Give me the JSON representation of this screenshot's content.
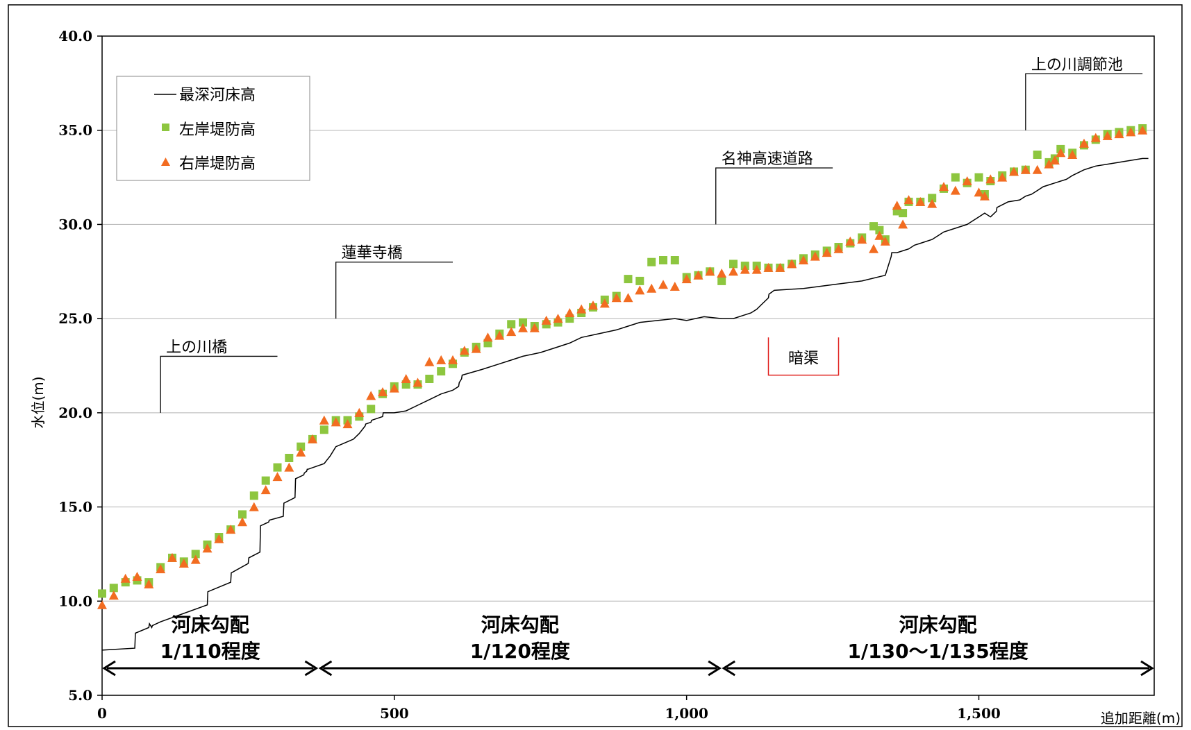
{
  "chart_data": {
    "type": "line",
    "xlabel": "追加距離(m)",
    "ylabel": "水位(m)",
    "xlim": [
      0,
      1800
    ],
    "ylim": [
      5.0,
      40.0
    ],
    "x_ticks": [
      "0",
      "500",
      "1,000",
      "1,500"
    ],
    "y_ticks": [
      "5.0",
      "10.0",
      "15.0",
      "20.0",
      "25.0",
      "30.0",
      "35.0",
      "40.0"
    ],
    "grid": "horizontal",
    "legend_position": "top-left",
    "series": [
      {
        "name": "最深河床高",
        "kind": "line",
        "color": "#000000",
        "x": [
          0,
          56,
          57,
          80,
          81,
          85,
          86,
          100,
          180,
          181,
          220,
          221,
          250,
          251,
          270,
          271,
          285,
          286,
          310,
          311,
          330,
          331,
          345,
          346,
          350,
          351,
          352,
          380,
          385,
          390,
          400,
          430,
          440,
          450,
          451,
          460,
          461,
          480,
          481,
          500,
          520,
          540,
          560,
          580,
          600,
          610,
          611,
          615,
          616,
          650,
          680,
          700,
          720,
          750,
          780,
          800,
          820,
          850,
          880,
          900,
          920,
          950,
          980,
          1000,
          1030,
          1060,
          1080,
          1100,
          1110,
          1120,
          1130,
          1140,
          1141,
          1150,
          1200,
          1250,
          1300,
          1340,
          1350,
          1351,
          1360,
          1370,
          1380,
          1390,
          1400,
          1420,
          1430,
          1440,
          1460,
          1480,
          1490,
          1500,
          1510,
          1520,
          1530,
          1531,
          1550,
          1570,
          1580,
          1590,
          1600,
          1610,
          1620,
          1630,
          1640,
          1650,
          1660,
          1680,
          1690,
          1700,
          1720,
          1740,
          1760,
          1780,
          1790
        ],
        "y": [
          7.4,
          7.5,
          8.3,
          8.6,
          8.8,
          8.6,
          8.7,
          8.9,
          9.8,
          10.5,
          11.0,
          11.5,
          12.0,
          12.3,
          12.6,
          14.0,
          14.2,
          14.3,
          14.5,
          15.2,
          15.5,
          16.5,
          16.7,
          16.8,
          16.9,
          17.0,
          17.0,
          17.3,
          17.5,
          17.7,
          18.2,
          18.6,
          18.9,
          19.3,
          19.4,
          19.5,
          19.6,
          19.8,
          20.0,
          20.0,
          20.1,
          20.4,
          20.7,
          21.0,
          21.2,
          21.4,
          21.6,
          21.8,
          22.0,
          22.3,
          22.6,
          22.8,
          23.0,
          23.2,
          23.5,
          23.7,
          24.0,
          24.2,
          24.4,
          24.6,
          24.8,
          24.9,
          25.0,
          24.9,
          25.1,
          25.0,
          25.0,
          25.2,
          25.3,
          25.5,
          25.8,
          26.1,
          26.3,
          26.5,
          26.6,
          26.8,
          27.0,
          27.3,
          28.3,
          28.5,
          28.5,
          28.6,
          28.7,
          28.9,
          29.0,
          29.2,
          29.4,
          29.6,
          29.8,
          30.0,
          30.2,
          30.4,
          30.6,
          30.4,
          30.7,
          30.9,
          31.2,
          31.3,
          31.5,
          31.6,
          31.8,
          32.0,
          32.1,
          32.2,
          32.3,
          32.4,
          32.6,
          32.9,
          33.0,
          33.1,
          33.2,
          33.3,
          33.4,
          33.5,
          33.5
        ]
      },
      {
        "name": "左岸堤防高",
        "kind": "marker",
        "marker": "square",
        "color": "#8dc63f",
        "x": [
          0,
          20,
          40,
          60,
          80,
          100,
          120,
          140,
          160,
          180,
          200,
          220,
          240,
          260,
          280,
          300,
          320,
          340,
          360,
          380,
          400,
          420,
          440,
          460,
          480,
          500,
          520,
          540,
          560,
          580,
          600,
          620,
          640,
          660,
          680,
          700,
          720,
          740,
          760,
          780,
          800,
          820,
          840,
          860,
          880,
          900,
          920,
          940,
          960,
          980,
          1000,
          1020,
          1040,
          1060,
          1080,
          1100,
          1120,
          1140,
          1160,
          1180,
          1200,
          1220,
          1240,
          1260,
          1280,
          1300,
          1320,
          1330,
          1340,
          1360,
          1370,
          1380,
          1400,
          1420,
          1440,
          1460,
          1480,
          1500,
          1510,
          1520,
          1540,
          1560,
          1580,
          1600,
          1620,
          1630,
          1640,
          1660,
          1680,
          1700,
          1720,
          1740,
          1760,
          1780
        ],
        "y": [
          10.4,
          10.7,
          11.0,
          11.1,
          11.0,
          11.8,
          12.3,
          12.1,
          12.5,
          13.0,
          13.4,
          13.8,
          14.6,
          15.6,
          16.4,
          17.1,
          17.6,
          18.2,
          18.6,
          19.1,
          19.6,
          19.6,
          19.8,
          20.2,
          21.0,
          21.4,
          21.5,
          21.5,
          21.8,
          22.2,
          22.6,
          23.2,
          23.5,
          23.7,
          24.2,
          24.7,
          24.8,
          24.6,
          24.7,
          24.8,
          25.0,
          25.3,
          25.6,
          26.0,
          26.2,
          27.1,
          27.0,
          28.0,
          28.1,
          28.1,
          27.2,
          27.3,
          27.5,
          27.0,
          27.9,
          27.8,
          27.8,
          27.7,
          27.7,
          27.9,
          28.2,
          28.4,
          28.6,
          28.8,
          29.0,
          29.3,
          29.9,
          29.7,
          29.2,
          30.7,
          30.6,
          31.2,
          31.2,
          31.4,
          31.9,
          32.5,
          32.2,
          32.5,
          31.6,
          32.3,
          32.6,
          32.8,
          32.9,
          33.7,
          33.3,
          33.5,
          34.0,
          33.8,
          34.2,
          34.5,
          34.8,
          34.9,
          35.0,
          35.1
        ]
      },
      {
        "name": "右岸堤防高",
        "kind": "marker",
        "marker": "triangle",
        "color": "#f26c21",
        "x": [
          0,
          20,
          40,
          60,
          80,
          100,
          120,
          140,
          160,
          180,
          200,
          220,
          240,
          260,
          280,
          300,
          320,
          340,
          360,
          380,
          400,
          420,
          440,
          460,
          480,
          500,
          520,
          540,
          560,
          580,
          600,
          620,
          640,
          660,
          680,
          700,
          720,
          740,
          760,
          780,
          800,
          820,
          840,
          860,
          880,
          900,
          920,
          940,
          960,
          980,
          1000,
          1020,
          1040,
          1060,
          1080,
          1100,
          1120,
          1140,
          1160,
          1180,
          1200,
          1220,
          1240,
          1260,
          1280,
          1300,
          1320,
          1330,
          1340,
          1360,
          1370,
          1380,
          1400,
          1420,
          1440,
          1460,
          1480,
          1500,
          1510,
          1520,
          1540,
          1560,
          1580,
          1600,
          1620,
          1630,
          1640,
          1660,
          1680,
          1700,
          1720,
          1740,
          1760,
          1780
        ],
        "y": [
          9.8,
          10.3,
          11.2,
          11.3,
          10.9,
          11.7,
          12.3,
          12.0,
          12.2,
          12.8,
          13.3,
          13.8,
          14.2,
          15.0,
          15.9,
          16.6,
          17.1,
          17.9,
          18.6,
          19.6,
          19.5,
          19.4,
          20.0,
          20.9,
          21.1,
          21.3,
          21.8,
          21.6,
          22.7,
          22.8,
          22.8,
          23.3,
          23.4,
          24.0,
          24.1,
          24.3,
          24.5,
          24.5,
          24.9,
          25.0,
          25.3,
          25.5,
          25.7,
          25.8,
          26.1,
          26.1,
          26.5,
          26.6,
          26.8,
          26.7,
          27.1,
          27.3,
          27.5,
          27.4,
          27.5,
          27.6,
          27.6,
          27.7,
          27.7,
          27.9,
          28.1,
          28.3,
          28.5,
          28.7,
          29.1,
          29.2,
          28.7,
          29.4,
          29.1,
          31.0,
          30.0,
          31.3,
          31.2,
          31.1,
          32.0,
          31.8,
          32.3,
          31.7,
          31.5,
          32.4,
          32.5,
          32.8,
          32.9,
          32.9,
          33.2,
          33.4,
          33.8,
          33.7,
          34.3,
          34.6,
          34.7,
          34.8,
          34.9,
          35.0
        ]
      }
    ],
    "annotations": {
      "bridge_kaminokawa": {
        "label": "上の川橋",
        "x": 100,
        "ymin": 20.0,
        "ymax": 23.0,
        "x_end": 300
      },
      "bridge_rengeji": {
        "label": "蓮華寺橋",
        "x": 400,
        "ymin": 25.0,
        "ymax": 28.0,
        "x_end": 600
      },
      "meishin": {
        "label": "名神高速道路",
        "x": 1050,
        "ymin": 30.0,
        "ymax": 33.0,
        "x_end": 1250
      },
      "pond": {
        "label": "上の川調節池",
        "x": 1580,
        "ymin": 35.0,
        "ymax": 38.0,
        "x_end": 1780
      },
      "culvert": {
        "label": "暗渠",
        "x_start": 1140,
        "x_end": 1260,
        "ymin": 22.0,
        "ymax": 24.0,
        "color": "#e0201e"
      }
    },
    "slopes": [
      {
        "line1": "河床勾配",
        "line2": "1/110程度",
        "x_start": 0,
        "x_end": 370
      },
      {
        "line1": "河床勾配",
        "line2": "1/120程度",
        "x_start": 370,
        "x_end": 1060
      },
      {
        "line1": "河床勾配",
        "line2": "1/130～1/135程度",
        "x_start": 1060,
        "x_end": 1800
      }
    ]
  }
}
